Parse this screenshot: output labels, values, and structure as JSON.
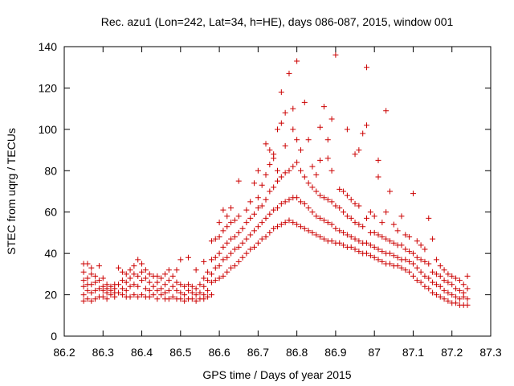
{
  "chart_data": {
    "type": "scatter",
    "title": "Rec. azu1 (Lon=242, Lat=34, h=HE), days 086-087, 2015, window 001",
    "xlabel": "GPS time / Days of year 2015",
    "ylabel": "STEC from uqrg / TECUs",
    "xlim": [
      86.2,
      87.3
    ],
    "ylim": [
      0,
      140
    ],
    "xticks": [
      "86.2",
      "86.3",
      "86.4",
      "86.5",
      "86.6",
      "86.7",
      "86.8",
      "86.9",
      "87",
      "87.1",
      "87.2",
      "87.3"
    ],
    "yticks": [
      "0",
      "20",
      "40",
      "60",
      "80",
      "100",
      "120",
      "140"
    ],
    "grid": false,
    "marker": "plus",
    "color": "#cc0000",
    "points": [
      [
        86.25,
        17
      ],
      [
        86.25,
        20
      ],
      [
        86.25,
        24
      ],
      [
        86.25,
        27
      ],
      [
        86.25,
        31
      ],
      [
        86.25,
        35
      ],
      [
        86.26,
        18
      ],
      [
        86.26,
        22
      ],
      [
        86.26,
        25
      ],
      [
        86.26,
        28
      ],
      [
        86.26,
        35
      ],
      [
        86.27,
        17
      ],
      [
        86.27,
        21
      ],
      [
        86.27,
        25
      ],
      [
        86.27,
        30
      ],
      [
        86.27,
        33
      ],
      [
        86.28,
        18
      ],
      [
        86.28,
        22
      ],
      [
        86.28,
        26
      ],
      [
        86.28,
        29
      ],
      [
        86.29,
        19
      ],
      [
        86.29,
        23
      ],
      [
        86.29,
        27
      ],
      [
        86.29,
        34
      ],
      [
        86.3,
        19
      ],
      [
        86.3,
        22
      ],
      [
        86.3,
        24
      ],
      [
        86.3,
        28
      ],
      [
        86.31,
        18
      ],
      [
        86.31,
        21
      ],
      [
        86.31,
        23
      ],
      [
        86.31,
        25
      ],
      [
        86.32,
        20
      ],
      [
        86.32,
        22
      ],
      [
        86.32,
        24
      ],
      [
        86.33,
        19
      ],
      [
        86.33,
        21
      ],
      [
        86.33,
        23
      ],
      [
        86.33,
        25
      ],
      [
        86.34,
        21
      ],
      [
        86.34,
        25
      ],
      [
        86.34,
        33
      ],
      [
        86.35,
        20
      ],
      [
        86.35,
        23
      ],
      [
        86.35,
        27
      ],
      [
        86.35,
        31
      ],
      [
        86.36,
        19
      ],
      [
        86.36,
        22
      ],
      [
        86.36,
        26
      ],
      [
        86.36,
        30
      ],
      [
        86.37,
        19
      ],
      [
        86.37,
        24
      ],
      [
        86.37,
        28
      ],
      [
        86.37,
        32
      ],
      [
        86.38,
        20
      ],
      [
        86.38,
        25
      ],
      [
        86.38,
        30
      ],
      [
        86.38,
        34
      ],
      [
        86.39,
        19
      ],
      [
        86.39,
        24
      ],
      [
        86.39,
        29
      ],
      [
        86.39,
        37
      ],
      [
        86.4,
        20
      ],
      [
        86.4,
        27
      ],
      [
        86.4,
        31
      ],
      [
        86.4,
        35
      ],
      [
        86.41,
        19
      ],
      [
        86.41,
        23
      ],
      [
        86.41,
        28
      ],
      [
        86.41,
        32
      ],
      [
        86.42,
        19
      ],
      [
        86.42,
        22
      ],
      [
        86.42,
        26
      ],
      [
        86.42,
        30
      ],
      [
        86.43,
        20
      ],
      [
        86.43,
        24
      ],
      [
        86.43,
        29
      ],
      [
        86.44,
        18
      ],
      [
        86.44,
        22
      ],
      [
        86.44,
        26
      ],
      [
        86.44,
        29
      ],
      [
        86.45,
        20
      ],
      [
        86.45,
        23
      ],
      [
        86.45,
        28
      ],
      [
        86.46,
        18
      ],
      [
        86.46,
        21
      ],
      [
        86.46,
        25
      ],
      [
        86.46,
        30
      ],
      [
        86.47,
        18
      ],
      [
        86.47,
        22
      ],
      [
        86.47,
        27
      ],
      [
        86.47,
        32
      ],
      [
        86.48,
        19
      ],
      [
        86.48,
        24
      ],
      [
        86.48,
        29
      ],
      [
        86.49,
        18
      ],
      [
        86.49,
        22
      ],
      [
        86.49,
        26
      ],
      [
        86.49,
        32
      ],
      [
        86.5,
        18
      ],
      [
        86.5,
        21
      ],
      [
        86.5,
        25
      ],
      [
        86.5,
        37
      ],
      [
        86.51,
        17
      ],
      [
        86.51,
        20
      ],
      [
        86.51,
        24
      ],
      [
        86.52,
        18
      ],
      [
        86.52,
        22
      ],
      [
        86.52,
        25
      ],
      [
        86.52,
        38
      ],
      [
        86.53,
        18
      ],
      [
        86.53,
        21
      ],
      [
        86.53,
        24
      ],
      [
        86.54,
        17
      ],
      [
        86.54,
        20
      ],
      [
        86.54,
        23
      ],
      [
        86.54,
        32
      ],
      [
        86.55,
        18
      ],
      [
        86.55,
        21
      ],
      [
        86.55,
        25
      ],
      [
        86.56,
        18
      ],
      [
        86.56,
        20
      ],
      [
        86.56,
        24
      ],
      [
        86.56,
        28
      ],
      [
        86.56,
        36
      ],
      [
        86.57,
        19
      ],
      [
        86.57,
        22
      ],
      [
        86.57,
        27
      ],
      [
        86.57,
        31
      ],
      [
        86.58,
        20
      ],
      [
        86.58,
        26
      ],
      [
        86.58,
        30
      ],
      [
        86.58,
        37
      ],
      [
        86.58,
        46
      ],
      [
        86.59,
        27
      ],
      [
        86.59,
        33
      ],
      [
        86.59,
        38
      ],
      [
        86.59,
        47
      ],
      [
        86.6,
        28
      ],
      [
        86.6,
        34
      ],
      [
        86.6,
        40
      ],
      [
        86.6,
        48
      ],
      [
        86.6,
        55
      ],
      [
        86.61,
        29
      ],
      [
        86.61,
        37
      ],
      [
        86.61,
        43
      ],
      [
        86.61,
        51
      ],
      [
        86.61,
        61
      ],
      [
        86.62,
        31
      ],
      [
        86.62,
        38
      ],
      [
        86.62,
        45
      ],
      [
        86.62,
        53
      ],
      [
        86.62,
        58
      ],
      [
        86.63,
        33
      ],
      [
        86.63,
        40
      ],
      [
        86.63,
        47
      ],
      [
        86.63,
        55
      ],
      [
        86.63,
        62
      ],
      [
        86.64,
        34
      ],
      [
        86.64,
        42
      ],
      [
        86.64,
        48
      ],
      [
        86.64,
        56
      ],
      [
        86.65,
        36
      ],
      [
        86.65,
        43
      ],
      [
        86.65,
        50
      ],
      [
        86.65,
        58
      ],
      [
        86.65,
        75
      ],
      [
        86.66,
        38
      ],
      [
        86.66,
        45
      ],
      [
        86.66,
        52
      ],
      [
        86.67,
        40
      ],
      [
        86.67,
        47
      ],
      [
        86.67,
        55
      ],
      [
        86.67,
        61
      ],
      [
        86.68,
        42
      ],
      [
        86.68,
        49
      ],
      [
        86.68,
        57
      ],
      [
        86.68,
        65
      ],
      [
        86.69,
        43
      ],
      [
        86.69,
        51
      ],
      [
        86.69,
        59
      ],
      [
        86.69,
        74
      ],
      [
        86.7,
        45
      ],
      [
        86.7,
        53
      ],
      [
        86.7,
        62
      ],
      [
        86.7,
        67
      ],
      [
        86.7,
        80
      ],
      [
        86.71,
        47
      ],
      [
        86.71,
        55
      ],
      [
        86.71,
        63
      ],
      [
        86.71,
        73
      ],
      [
        86.72,
        48
      ],
      [
        86.72,
        57
      ],
      [
        86.72,
        66
      ],
      [
        86.72,
        78
      ],
      [
        86.72,
        93
      ],
      [
        86.73,
        50
      ],
      [
        86.73,
        59
      ],
      [
        86.73,
        70
      ],
      [
        86.73,
        83
      ],
      [
        86.73,
        90
      ],
      [
        86.74,
        52
      ],
      [
        86.74,
        61
      ],
      [
        86.74,
        72
      ],
      [
        86.74,
        86
      ],
      [
        86.74,
        88
      ],
      [
        86.75,
        53
      ],
      [
        86.75,
        62
      ],
      [
        86.75,
        75
      ],
      [
        86.75,
        80
      ],
      [
        86.75,
        100
      ],
      [
        86.76,
        54
      ],
      [
        86.76,
        64
      ],
      [
        86.76,
        77
      ],
      [
        86.76,
        103
      ],
      [
        86.76,
        118
      ],
      [
        86.77,
        55
      ],
      [
        86.77,
        65
      ],
      [
        86.77,
        79
      ],
      [
        86.77,
        92
      ],
      [
        86.77,
        108
      ],
      [
        86.78,
        56
      ],
      [
        86.78,
        66
      ],
      [
        86.78,
        80
      ],
      [
        86.78,
        127
      ],
      [
        86.79,
        55
      ],
      [
        86.79,
        67
      ],
      [
        86.79,
        82
      ],
      [
        86.79,
        100
      ],
      [
        86.79,
        110
      ],
      [
        86.8,
        54
      ],
      [
        86.8,
        67
      ],
      [
        86.8,
        84
      ],
      [
        86.8,
        95
      ],
      [
        86.8,
        133
      ],
      [
        86.81,
        53
      ],
      [
        86.81,
        65
      ],
      [
        86.81,
        80
      ],
      [
        86.81,
        90
      ],
      [
        86.82,
        52
      ],
      [
        86.82,
        64
      ],
      [
        86.82,
        77
      ],
      [
        86.82,
        113
      ],
      [
        86.83,
        51
      ],
      [
        86.83,
        62
      ],
      [
        86.83,
        74
      ],
      [
        86.83,
        95
      ],
      [
        86.84,
        50
      ],
      [
        86.84,
        60
      ],
      [
        86.84,
        72
      ],
      [
        86.84,
        82
      ],
      [
        86.85,
        49
      ],
      [
        86.85,
        58
      ],
      [
        86.85,
        70
      ],
      [
        86.85,
        78
      ],
      [
        86.86,
        48
      ],
      [
        86.86,
        57
      ],
      [
        86.86,
        68
      ],
      [
        86.86,
        85
      ],
      [
        86.86,
        101
      ],
      [
        86.87,
        47
      ],
      [
        86.87,
        56
      ],
      [
        86.87,
        67
      ],
      [
        86.87,
        111
      ],
      [
        86.88,
        46
      ],
      [
        86.88,
        55
      ],
      [
        86.88,
        66
      ],
      [
        86.88,
        86
      ],
      [
        86.88,
        95
      ],
      [
        86.89,
        46
      ],
      [
        86.89,
        54
      ],
      [
        86.89,
        65
      ],
      [
        86.89,
        80
      ],
      [
        86.89,
        105
      ],
      [
        86.9,
        45
      ],
      [
        86.9,
        52
      ],
      [
        86.9,
        63
      ],
      [
        86.9,
        136
      ],
      [
        86.91,
        45
      ],
      [
        86.91,
        51
      ],
      [
        86.91,
        62
      ],
      [
        86.91,
        71
      ],
      [
        86.92,
        44
      ],
      [
        86.92,
        50
      ],
      [
        86.92,
        60
      ],
      [
        86.92,
        70
      ],
      [
        86.93,
        43
      ],
      [
        86.93,
        49
      ],
      [
        86.93,
        58
      ],
      [
        86.93,
        68
      ],
      [
        86.93,
        100
      ],
      [
        86.94,
        43
      ],
      [
        86.94,
        48
      ],
      [
        86.94,
        57
      ],
      [
        86.94,
        66
      ],
      [
        86.95,
        42
      ],
      [
        86.95,
        47
      ],
      [
        86.95,
        55
      ],
      [
        86.95,
        64
      ],
      [
        86.95,
        88
      ],
      [
        86.96,
        41
      ],
      [
        86.96,
        46
      ],
      [
        86.96,
        54
      ],
      [
        86.96,
        63
      ],
      [
        86.96,
        90
      ],
      [
        86.97,
        40
      ],
      [
        86.97,
        45
      ],
      [
        86.97,
        53
      ],
      [
        86.97,
        98
      ],
      [
        86.98,
        40
      ],
      [
        86.98,
        45
      ],
      [
        86.98,
        57
      ],
      [
        86.98,
        102
      ],
      [
        86.98,
        130
      ],
      [
        86.99,
        39
      ],
      [
        86.99,
        44
      ],
      [
        86.99,
        50
      ],
      [
        86.99,
        60
      ],
      [
        87.0,
        38
      ],
      [
        87.0,
        43
      ],
      [
        87.0,
        50
      ],
      [
        87.0,
        58
      ],
      [
        87.01,
        37
      ],
      [
        87.01,
        42
      ],
      [
        87.01,
        49
      ],
      [
        87.01,
        77
      ],
      [
        87.01,
        85
      ],
      [
        87.02,
        36
      ],
      [
        87.02,
        41
      ],
      [
        87.02,
        48
      ],
      [
        87.02,
        55
      ],
      [
        87.03,
        35
      ],
      [
        87.03,
        40
      ],
      [
        87.03,
        47
      ],
      [
        87.03,
        60
      ],
      [
        87.03,
        109
      ],
      [
        87.04,
        35
      ],
      [
        87.04,
        40
      ],
      [
        87.04,
        46
      ],
      [
        87.04,
        70
      ],
      [
        87.05,
        34
      ],
      [
        87.05,
        39
      ],
      [
        87.05,
        45
      ],
      [
        87.05,
        54
      ],
      [
        87.06,
        34
      ],
      [
        87.06,
        38
      ],
      [
        87.06,
        44
      ],
      [
        87.06,
        51
      ],
      [
        87.07,
        33
      ],
      [
        87.07,
        37
      ],
      [
        87.07,
        44
      ],
      [
        87.07,
        58
      ],
      [
        87.08,
        32
      ],
      [
        87.08,
        37
      ],
      [
        87.08,
        42
      ],
      [
        87.08,
        49
      ],
      [
        87.09,
        31
      ],
      [
        87.09,
        36
      ],
      [
        87.09,
        41
      ],
      [
        87.09,
        48
      ],
      [
        87.1,
        29
      ],
      [
        87.1,
        35
      ],
      [
        87.1,
        40
      ],
      [
        87.1,
        69
      ],
      [
        87.11,
        27
      ],
      [
        87.11,
        33
      ],
      [
        87.11,
        38
      ],
      [
        87.11,
        46
      ],
      [
        87.12,
        26
      ],
      [
        87.12,
        31
      ],
      [
        87.12,
        37
      ],
      [
        87.12,
        44
      ],
      [
        87.13,
        24
      ],
      [
        87.13,
        29
      ],
      [
        87.13,
        36
      ],
      [
        87.13,
        42
      ],
      [
        87.14,
        23
      ],
      [
        87.14,
        28
      ],
      [
        87.14,
        35
      ],
      [
        87.14,
        57
      ],
      [
        87.15,
        21
      ],
      [
        87.15,
        26
      ],
      [
        87.15,
        31
      ],
      [
        87.15,
        47
      ],
      [
        87.16,
        20
      ],
      [
        87.16,
        25
      ],
      [
        87.16,
        30
      ],
      [
        87.16,
        37
      ],
      [
        87.17,
        19
      ],
      [
        87.17,
        24
      ],
      [
        87.17,
        29
      ],
      [
        87.17,
        34
      ],
      [
        87.18,
        18
      ],
      [
        87.18,
        22
      ],
      [
        87.18,
        27
      ],
      [
        87.18,
        32
      ],
      [
        87.19,
        17
      ],
      [
        87.19,
        21
      ],
      [
        87.19,
        26
      ],
      [
        87.19,
        30
      ],
      [
        87.2,
        16
      ],
      [
        87.2,
        20
      ],
      [
        87.2,
        25
      ],
      [
        87.2,
        29
      ],
      [
        87.21,
        16
      ],
      [
        87.21,
        19
      ],
      [
        87.21,
        23
      ],
      [
        87.21,
        28
      ],
      [
        87.22,
        15
      ],
      [
        87.22,
        18
      ],
      [
        87.22,
        22
      ],
      [
        87.22,
        27
      ],
      [
        87.23,
        15
      ],
      [
        87.23,
        19
      ],
      [
        87.23,
        21
      ],
      [
        87.23,
        25
      ],
      [
        87.24,
        15
      ],
      [
        87.24,
        18
      ],
      [
        87.24,
        23
      ],
      [
        87.24,
        29
      ]
    ]
  }
}
